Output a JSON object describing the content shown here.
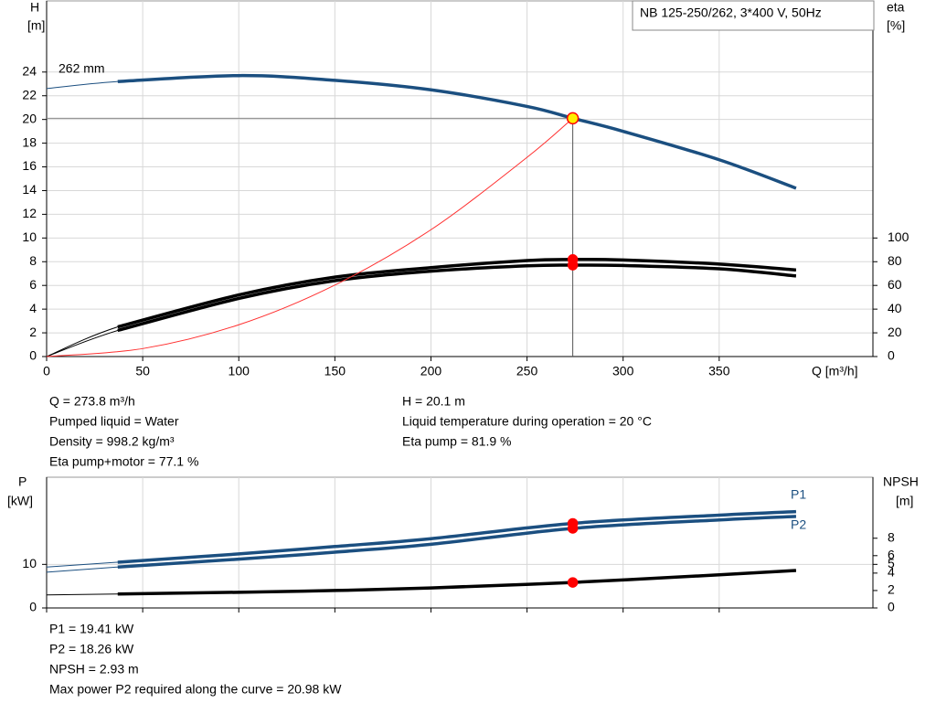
{
  "chart_data": [
    {
      "type": "line",
      "box_label": "NB 125-250/262, 3*400 V, 50Hz",
      "ylabel": [
        "H",
        "[m]"
      ],
      "y2label": [
        "eta",
        "[%]"
      ],
      "xlabel": "Q [m³/h]",
      "xlim": [
        0,
        430
      ],
      "xticks": [
        0,
        50,
        100,
        150,
        200,
        250,
        300,
        350
      ],
      "ylim": [
        0,
        30
      ],
      "yticks": [
        0,
        2,
        4,
        6,
        8,
        10,
        12,
        14,
        16,
        18,
        20,
        22,
        24
      ],
      "y2lim": [
        0,
        300
      ],
      "y2ticks": [
        0,
        20,
        40,
        60,
        80,
        100
      ],
      "grid": true,
      "operating_q": 273.8,
      "series": [
        {
          "name": "262 mm",
          "color": "#1b4f80",
          "marker_color": "#ffee00",
          "x": [
            0,
            37,
            100,
            150,
            200,
            250,
            273.8,
            300,
            350,
            390
          ],
          "values": [
            22.6,
            23.2,
            23.7,
            23.3,
            22.5,
            21.1,
            20.1,
            19.0,
            16.6,
            14.2
          ]
        },
        {
          "color": "#000000",
          "marker_color": "#ff0000",
          "axis": "y2",
          "x": [
            0,
            37,
            100,
            150,
            200,
            250,
            273.8,
            300,
            350,
            390
          ],
          "values": [
            0,
            25,
            52,
            67,
            75,
            81,
            81.9,
            81.5,
            78,
            73
          ]
        },
        {
          "color": "#000000",
          "marker_color": "#ff0000",
          "axis": "y2",
          "x": [
            0,
            37,
            100,
            150,
            200,
            250,
            273.8,
            300,
            350,
            390
          ],
          "values": [
            0,
            22,
            49,
            64,
            72,
            76.5,
            77.1,
            76.8,
            74,
            68
          ]
        },
        {
          "color": "#ff3030",
          "style": "thin",
          "x": [
            0,
            50,
            100,
            150,
            200,
            250,
            273.8
          ],
          "values": [
            0,
            0.67,
            2.68,
            6.03,
            10.7,
            16.8,
            20.1
          ]
        }
      ],
      "info_left": [
        "Q = 273.8 m³/h",
        "Pumped liquid = Water",
        "Density = 998.2 kg/m³",
        "Eta pump+motor = 77.1 %"
      ],
      "info_right": [
        "H = 20.1 m",
        "Liquid temperature during operation = 20 °C",
        "Eta pump = 81.9 %"
      ]
    },
    {
      "type": "line",
      "ylabel": [
        "P",
        "[kW]"
      ],
      "y2label": [
        "NPSH",
        "[m]"
      ],
      "xlim": [
        0,
        430
      ],
      "xticks": [
        0,
        50,
        100,
        150,
        200,
        250,
        300,
        350
      ],
      "ylim": [
        0,
        30
      ],
      "yticks": [
        0,
        10
      ],
      "y2lim": [
        0,
        15
      ],
      "y2ticks": [
        0,
        2,
        4,
        5,
        6,
        8
      ],
      "grid": true,
      "operating_q": 273.8,
      "series": [
        {
          "name": "P1",
          "color": "#1b4f80",
          "marker_color": "#ff0000",
          "x": [
            0,
            37,
            100,
            150,
            200,
            273.8,
            350,
            390
          ],
          "values": [
            9.4,
            10.5,
            12.4,
            14.1,
            15.9,
            19.41,
            21.3,
            22.1
          ]
        },
        {
          "name": "P2",
          "color": "#1b4f80",
          "marker_color": "#ff0000",
          "x": [
            0,
            37,
            100,
            150,
            200,
            273.8,
            350,
            390
          ],
          "values": [
            8.2,
            9.4,
            11.2,
            12.8,
            14.6,
            18.26,
            20.2,
            21.0
          ]
        },
        {
          "color": "#000000",
          "marker_color": "#ff0000",
          "axis": "y2",
          "x": [
            0,
            37,
            100,
            150,
            200,
            273.8,
            350,
            390
          ],
          "values": [
            1.5,
            1.6,
            1.8,
            2.0,
            2.3,
            2.93,
            3.8,
            4.3
          ]
        }
      ],
      "info_left": [
        "P1 = 19.41 kW",
        "P2 = 18.26 kW",
        "NPSH = 2.93 m",
        "Max power P2 required along the curve = 20.98 kW"
      ]
    }
  ]
}
